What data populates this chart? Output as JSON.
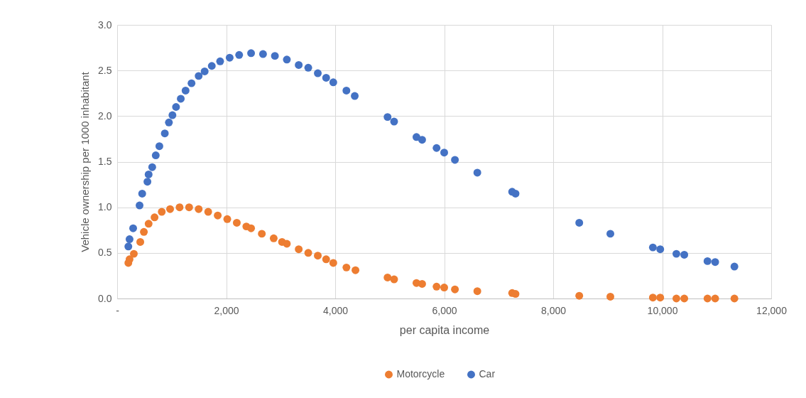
{
  "chart_data": {
    "type": "scatter",
    "xlabel": "per capita income",
    "ylabel": "Vehicle ownership per 1000 inhabitant",
    "xlim": [
      0,
      12000
    ],
    "xticks": [
      {
        "value": 0,
        "label": "-"
      },
      {
        "value": 2000,
        "label": "2,000"
      },
      {
        "value": 4000,
        "label": "4,000"
      },
      {
        "value": 6000,
        "label": "6,000"
      },
      {
        "value": 8000,
        "label": "8,000"
      },
      {
        "value": 10000,
        "label": "10,000"
      },
      {
        "value": 12000,
        "label": "12,000"
      }
    ],
    "ylim": [
      0,
      3
    ],
    "yticks": [
      {
        "value": 0,
        "label": "0.0"
      },
      {
        "value": 0.5,
        "label": "0.5"
      },
      {
        "value": 1,
        "label": "1.0"
      },
      {
        "value": 1.5,
        "label": "1.5"
      },
      {
        "value": 2,
        "label": "2.0"
      },
      {
        "value": 2.5,
        "label": "2.5"
      },
      {
        "value": 3,
        "label": "3.0"
      }
    ],
    "grid": true,
    "legend": "bottom",
    "marker": "circle",
    "series": [
      {
        "name": "Motorcycle",
        "color": "#ed7d31",
        "x": [
          205,
          227,
          306,
          424,
          490,
          577,
          686,
          818,
          971,
          1145,
          1320,
          1495,
          1670,
          1845,
          2020,
          2195,
          2370,
          2457,
          2654,
          2872,
          3025,
          3113,
          3331,
          3506,
          3681,
          3834,
          3965,
          4206,
          4372,
          4961,
          5081,
          5491,
          5595,
          5860,
          6000,
          6197,
          6608,
          7247,
          7309,
          8478,
          9049,
          9829,
          9964,
          10260,
          10405,
          10831,
          10972,
          11325
        ],
        "values": [
          0.39,
          0.43,
          0.49,
          0.62,
          0.73,
          0.82,
          0.89,
          0.95,
          0.98,
          1.0,
          1.0,
          0.98,
          0.95,
          0.91,
          0.87,
          0.83,
          0.79,
          0.77,
          0.71,
          0.66,
          0.62,
          0.6,
          0.54,
          0.5,
          0.47,
          0.43,
          0.39,
          0.34,
          0.31,
          0.23,
          0.21,
          0.17,
          0.16,
          0.13,
          0.12,
          0.1,
          0.08,
          0.06,
          0.05,
          0.03,
          0.02,
          0.01,
          0.01,
          0,
          0,
          0,
          0,
          0
        ]
      },
      {
        "name": "Car",
        "color": "#4472c4",
        "x": [
          205,
          227,
          293,
          411,
          459,
          555,
          577,
          643,
          708,
          774,
          874,
          949,
          1014,
          1080,
          1167,
          1255,
          1364,
          1495,
          1605,
          1736,
          1889,
          2064,
          2238,
          2457,
          2676,
          2894,
          3113,
          3331,
          3506,
          3681,
          3834,
          3965,
          4206,
          4359,
          4961,
          5081,
          5491,
          5595,
          5860,
          6000,
          6197,
          6608,
          7247,
          7309,
          8478,
          9049,
          9829,
          9964,
          10260,
          10405,
          10831,
          10972,
          11325
        ],
        "values": [
          0.57,
          0.65,
          0.77,
          1.02,
          1.15,
          1.28,
          1.36,
          1.44,
          1.57,
          1.67,
          1.81,
          1.93,
          2.01,
          2.1,
          2.19,
          2.28,
          2.36,
          2.44,
          2.49,
          2.55,
          2.6,
          2.64,
          2.67,
          2.69,
          2.68,
          2.66,
          2.62,
          2.56,
          2.53,
          2.47,
          2.42,
          2.37,
          2.28,
          2.22,
          1.99,
          1.94,
          1.77,
          1.74,
          1.65,
          1.6,
          1.52,
          1.38,
          1.17,
          1.15,
          0.83,
          0.71,
          0.56,
          0.54,
          0.49,
          0.48,
          0.41,
          0.4,
          0.35
        ]
      }
    ]
  }
}
